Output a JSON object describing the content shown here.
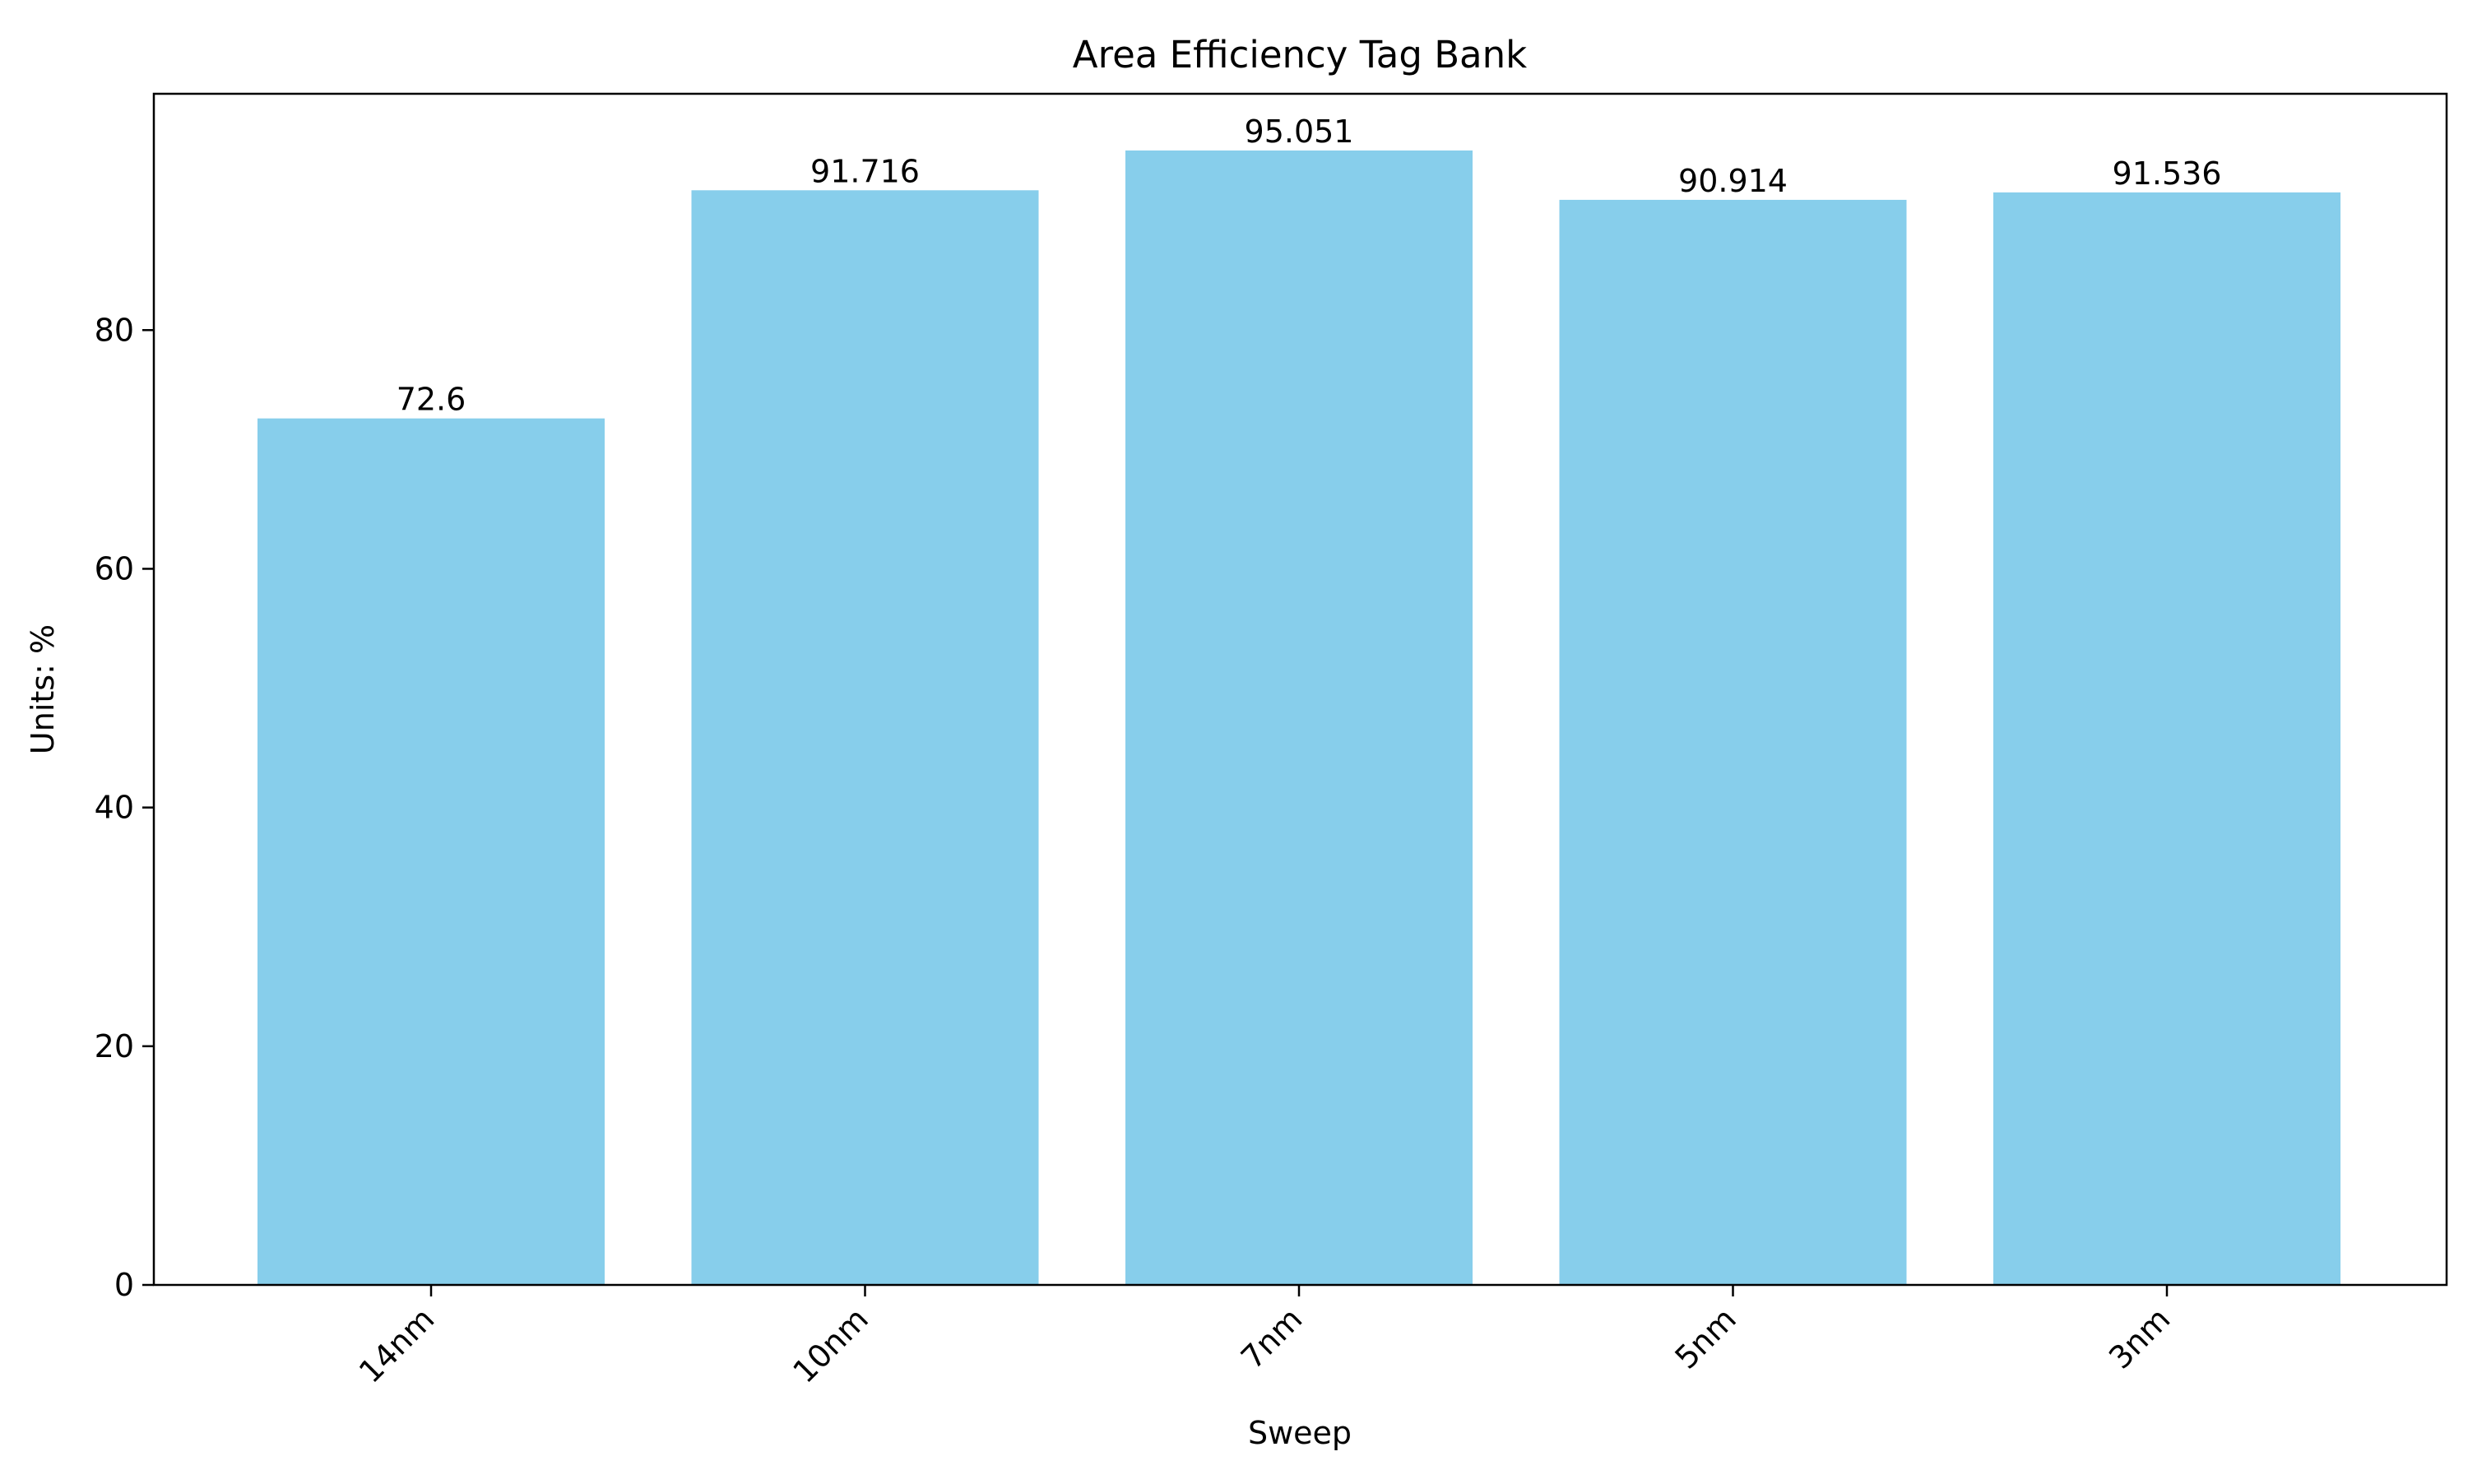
{
  "chart_data": {
    "type": "bar",
    "title": "Area Efficiency Tag Bank",
    "xlabel": "Sweep",
    "ylabel": "Units: %",
    "categories": [
      "14nm",
      "10nm",
      "7nm",
      "5nm",
      "3nm"
    ],
    "values": [
      72.6,
      91.716,
      95.051,
      90.914,
      91.536
    ],
    "value_labels": [
      "72.6",
      "91.716",
      "95.051",
      "90.914",
      "91.536"
    ],
    "ylim": [
      0,
      99.8
    ],
    "yticks": [
      0,
      20,
      40,
      60,
      80
    ],
    "ytick_labels": [
      "0",
      "20",
      "40",
      "60",
      "80"
    ],
    "bar_color": "#87CEEB",
    "grid": false,
    "legend": "none"
  }
}
